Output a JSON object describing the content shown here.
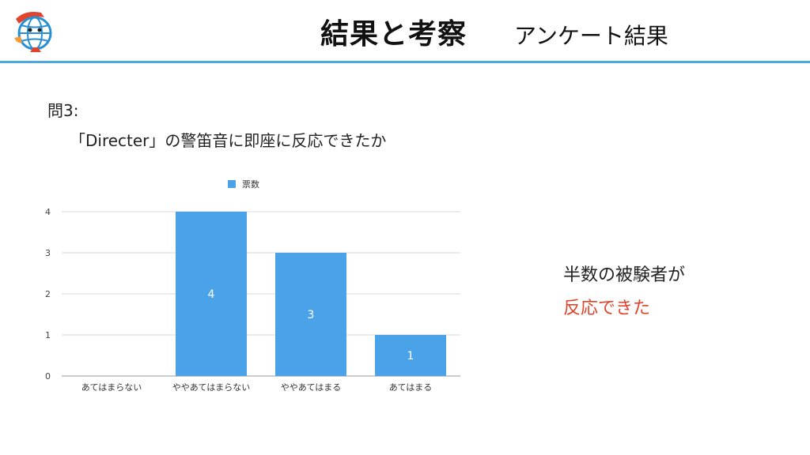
{
  "header": {
    "title": "結果と考察",
    "subtitle": "アンケート結果"
  },
  "question": {
    "label": "問3:",
    "text": "「Directer」の警笛音に即座に反応できたか"
  },
  "conclusion": {
    "line1": "半数の被験者が",
    "line2": "反応できた"
  },
  "colors": {
    "accent": "#4aa8e0",
    "bar": "#4aa3e8",
    "highlight": "#e0442c"
  },
  "chart_data": {
    "type": "bar",
    "categories": [
      "あてはまらない",
      "ややあてはまらない",
      "ややあてはまる",
      "あてはまる"
    ],
    "series": [
      {
        "name": "票数",
        "values": [
          0,
          4,
          3,
          1
        ]
      }
    ],
    "ylim": [
      0,
      4
    ],
    "yticks": [
      0,
      1,
      2,
      3,
      4
    ],
    "legend": "top-center",
    "grid": true,
    "data_labels": true
  }
}
